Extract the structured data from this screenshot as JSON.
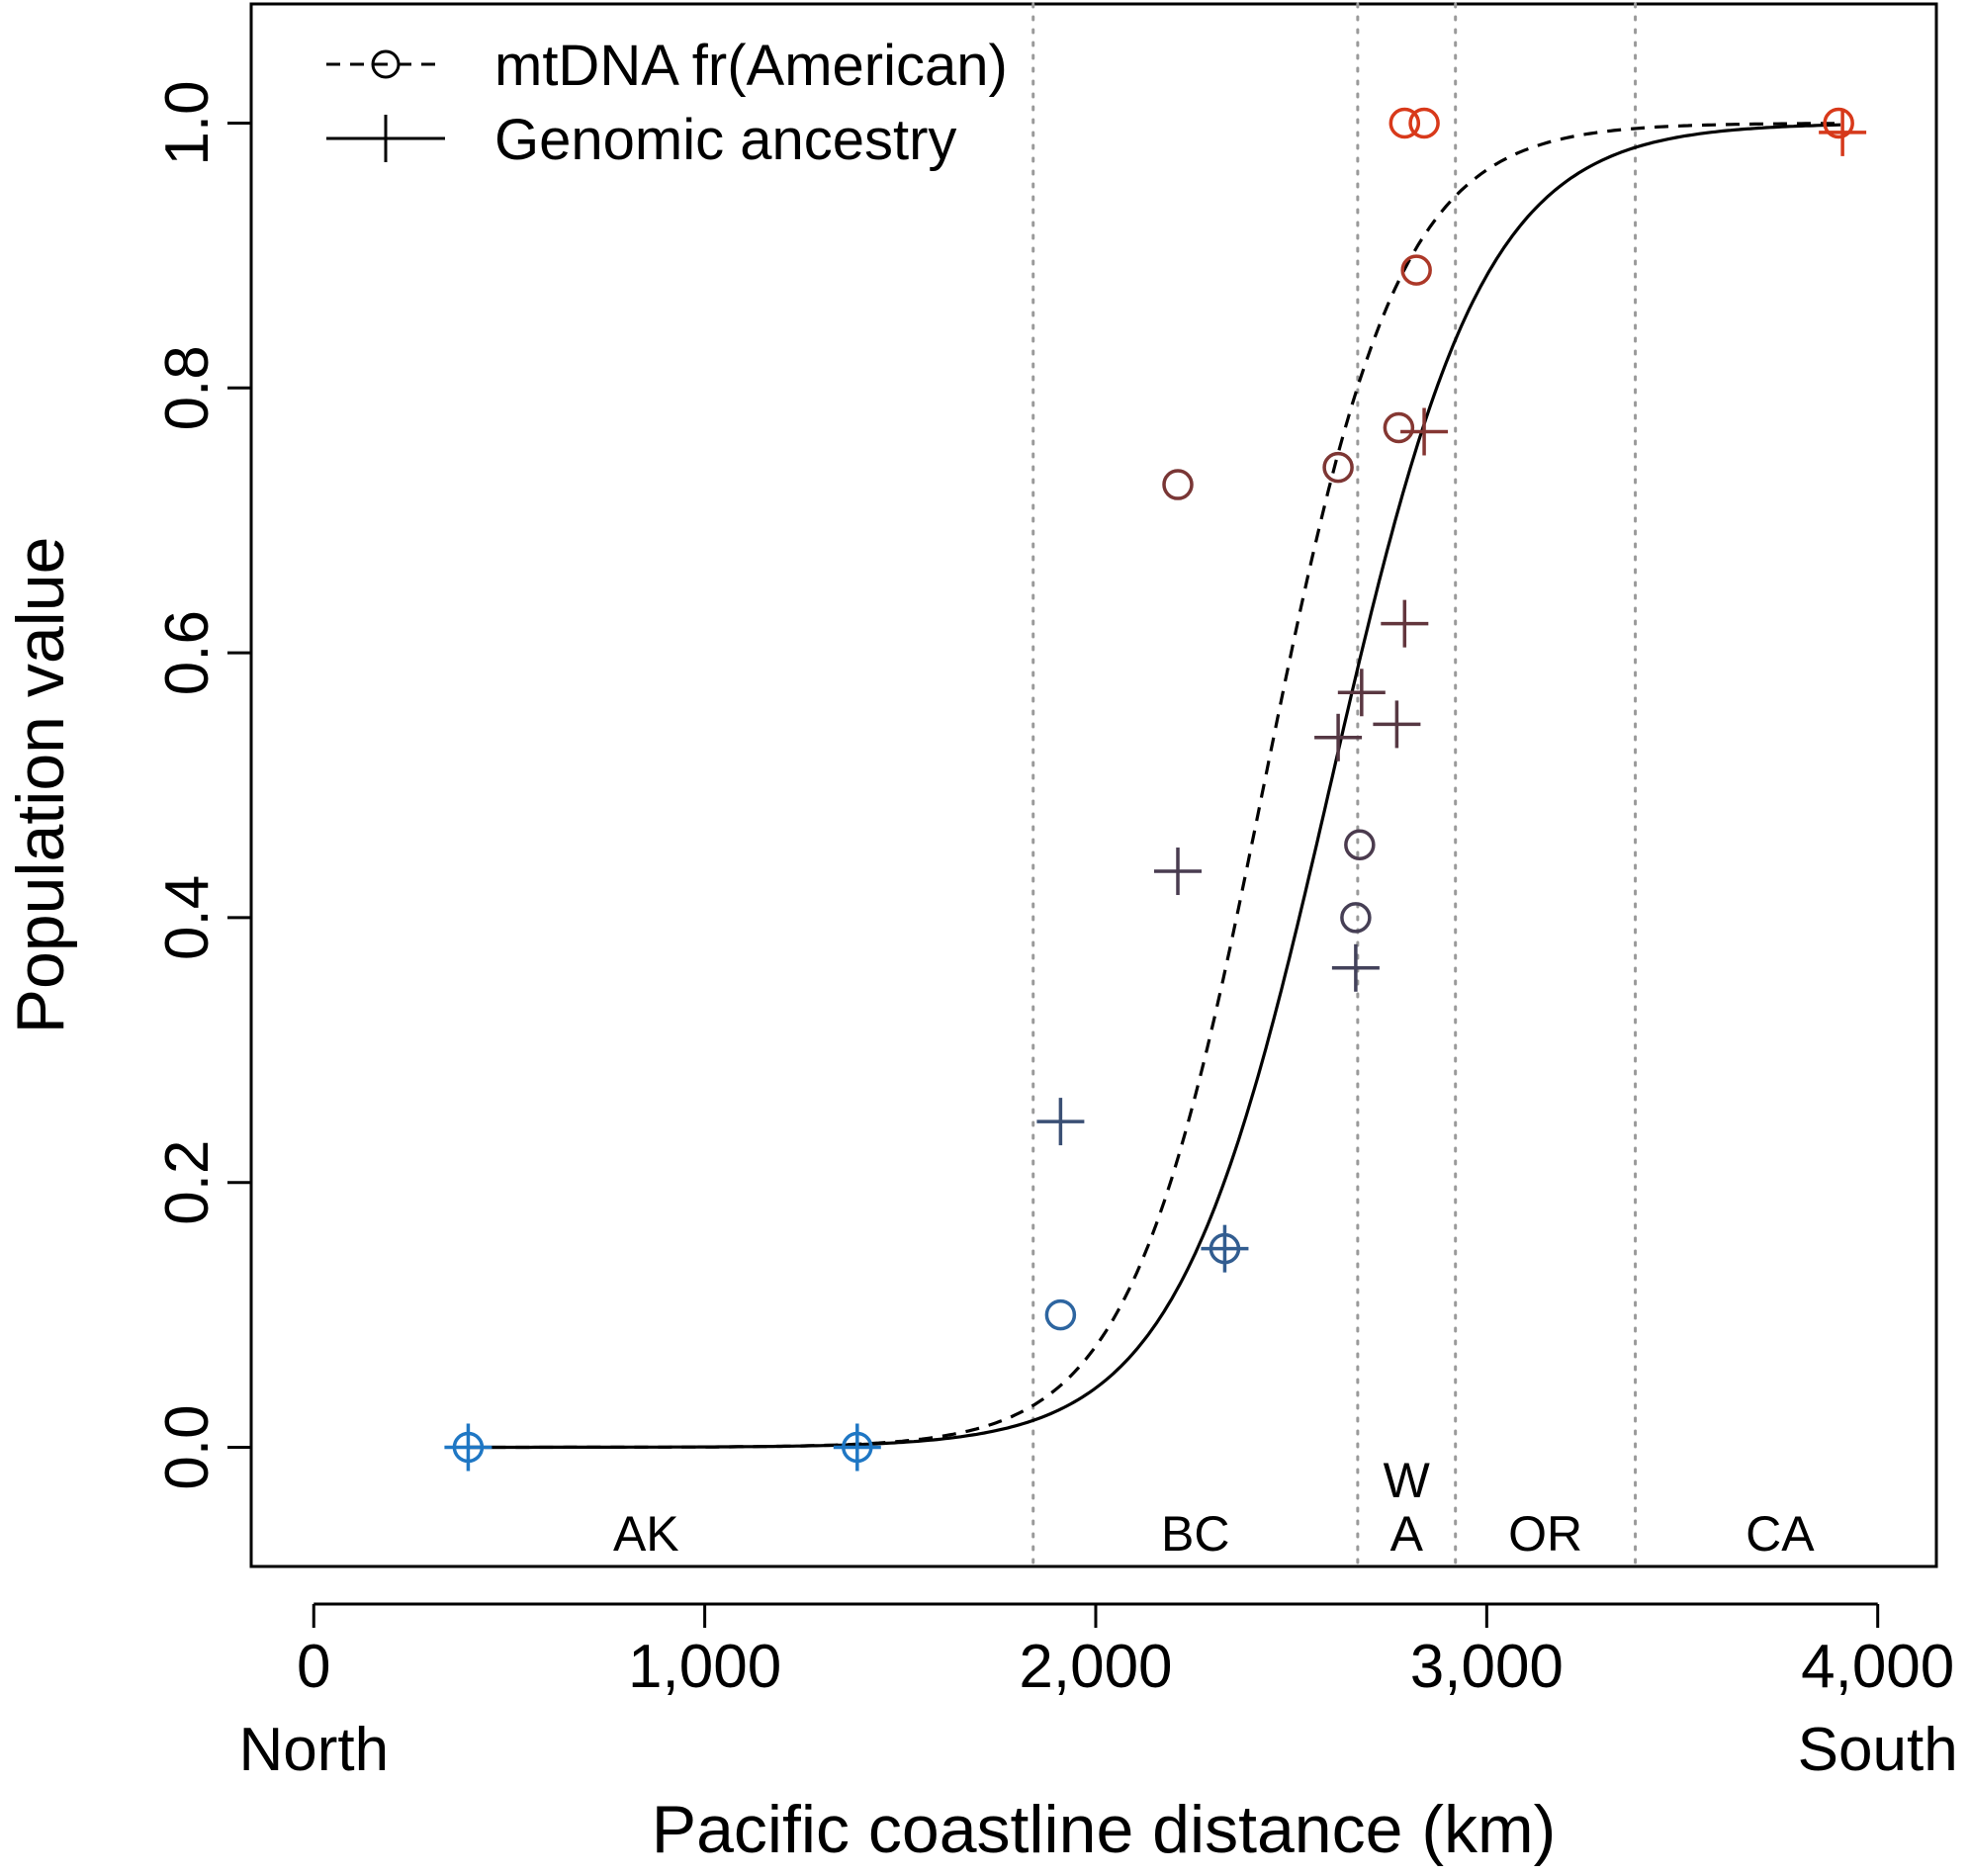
{
  "chart_data": {
    "type": "scatter",
    "xlabel": "Pacific coastline distance (km)",
    "ylabel": "Population value",
    "xlim": [
      -160,
      4150
    ],
    "ylim": [
      -0.09,
      1.09
    ],
    "x_ticks": [
      {
        "value": 0,
        "label": "0",
        "sublabel": "North"
      },
      {
        "value": 1000,
        "label": "1,000",
        "sublabel": ""
      },
      {
        "value": 2000,
        "label": "2,000",
        "sublabel": ""
      },
      {
        "value": 3000,
        "label": "3,000",
        "sublabel": ""
      },
      {
        "value": 4000,
        "label": "4,000",
        "sublabel": "South"
      }
    ],
    "y_ticks": [
      {
        "value": 0.0,
        "label": "0.0"
      },
      {
        "value": 0.2,
        "label": "0.2"
      },
      {
        "value": 0.4,
        "label": "0.4"
      },
      {
        "value": 0.6,
        "label": "0.6"
      },
      {
        "value": 0.8,
        "label": "0.8"
      },
      {
        "value": 1.0,
        "label": "1.0"
      }
    ],
    "region_boundaries": [
      1840,
      2670,
      2920,
      3380
    ],
    "regions": [
      {
        "label": "AK",
        "line1": "",
        "x": 850
      },
      {
        "label": "BC",
        "line1": "",
        "x": 2255
      },
      {
        "label": "A",
        "line1": "W",
        "x": 2795
      },
      {
        "label": "OR",
        "line1": "",
        "x": 3150
      },
      {
        "label": "CA",
        "x": 3750,
        "line1": ""
      }
    ],
    "legend": {
      "position": "top-left",
      "entries": [
        {
          "label": "mtDNA fr(American)",
          "marker": "circle",
          "line": "dashed"
        },
        {
          "label": "Genomic ancestry",
          "marker": "plus",
          "line": "solid"
        }
      ]
    },
    "color_scale": {
      "low": "#1f77c4",
      "high": "#d8391a"
    },
    "series": [
      {
        "name": "mtDNA fr(American)",
        "marker": "circle",
        "points": [
          {
            "x": 395,
            "y": 0.0
          },
          {
            "x": 1390,
            "y": 0.0
          },
          {
            "x": 1910,
            "y": 0.1
          },
          {
            "x": 2330,
            "y": 0.15
          },
          {
            "x": 2210,
            "y": 0.727
          },
          {
            "x": 2620,
            "y": 0.74
          },
          {
            "x": 2665,
            "y": 0.4
          },
          {
            "x": 2675,
            "y": 0.455
          },
          {
            "x": 2775,
            "y": 0.77
          },
          {
            "x": 2790,
            "y": 1.0
          },
          {
            "x": 2820,
            "y": 0.889
          },
          {
            "x": 2840,
            "y": 1.0
          },
          {
            "x": 3900,
            "y": 1.0
          }
        ],
        "fitted_curve": {
          "line": "dashed",
          "center": 2430,
          "slope": 0.0058
        }
      },
      {
        "name": "Genomic ancestry",
        "marker": "plus",
        "points": [
          {
            "x": 395,
            "y": 0.0
          },
          {
            "x": 1390,
            "y": 0.0
          },
          {
            "x": 1910,
            "y": 0.246
          },
          {
            "x": 2330,
            "y": 0.15
          },
          {
            "x": 2210,
            "y": 0.435
          },
          {
            "x": 2620,
            "y": 0.536
          },
          {
            "x": 2665,
            "y": 0.362
          },
          {
            "x": 2680,
            "y": 0.57
          },
          {
            "x": 2770,
            "y": 0.546
          },
          {
            "x": 2790,
            "y": 0.622
          },
          {
            "x": 2840,
            "y": 0.767
          },
          {
            "x": 3910,
            "y": 0.993
          }
        ],
        "fitted_curve": {
          "line": "solid",
          "center": 2600,
          "slope": 0.0051
        }
      }
    ]
  }
}
